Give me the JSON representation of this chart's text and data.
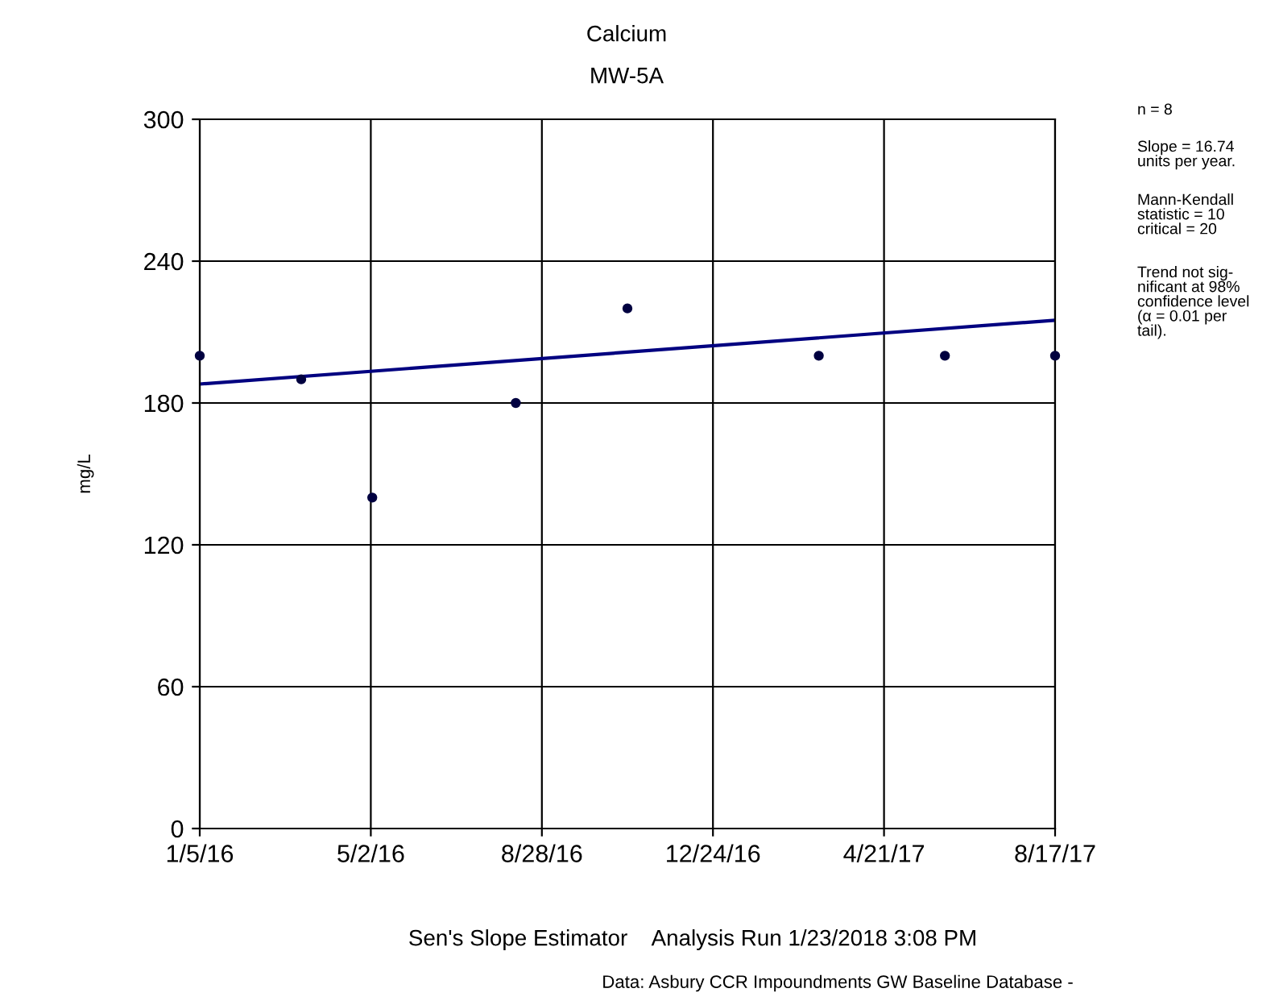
{
  "chart_data": {
    "type": "scatter",
    "title": "Calcium",
    "subtitle": "MW-5A",
    "ylabel": "mg/L",
    "x": [
      "2016-01-05",
      "2016-03-15",
      "2016-05-03",
      "2016-08-10",
      "2016-10-26",
      "2017-03-07",
      "2017-06-02",
      "2017-08-17"
    ],
    "series": [
      {
        "color": "#000040",
        "values": [
          200,
          190,
          140,
          180,
          220,
          200,
          200,
          200
        ],
        "marker": "circle"
      },
      {
        "type": "line",
        "color": "#000080",
        "x": [
          "2016-01-05",
          "2017-08-17"
        ],
        "values": [
          188,
          215
        ],
        "line_style": "solid"
      }
    ],
    "xlim": [
      "2016-01-05",
      "2017-08-17"
    ],
    "xticks": [
      {
        "value": "2016-01-05",
        "label": "1/5/16"
      },
      {
        "value": "2016-05-02",
        "label": "5/2/16"
      },
      {
        "value": "2016-08-28",
        "label": "8/28/16"
      },
      {
        "value": "2016-12-24",
        "label": "12/24/16"
      },
      {
        "value": "2017-04-21",
        "label": "4/21/17"
      },
      {
        "value": "2017-08-17",
        "label": "8/17/17"
      }
    ],
    "ylim": [
      0,
      300
    ],
    "yticks": [
      0,
      60,
      120,
      180,
      240,
      300
    ],
    "grid": true,
    "annotations": [
      "n = 8",
      "Slope = 16.74\nunits per year.",
      "Mann-Kendall\nstatistic = 10\ncritical = 20",
      "Trend not sig-\nnificant at 98%\nconfidence level\n(α = 0.01 per\ntail).",
      "Sen's Slope Estimator    Analysis Run 1/23/2018 3:08 PM",
      "Data: Asbury CCR Impoundments GW Baseline Database -"
    ]
  }
}
